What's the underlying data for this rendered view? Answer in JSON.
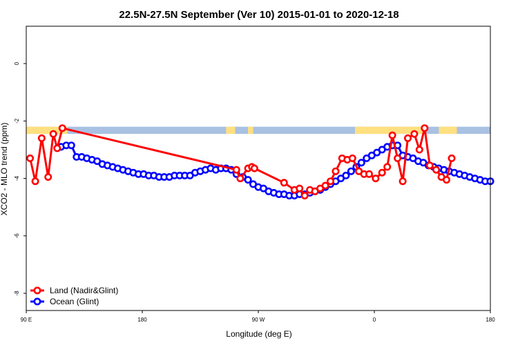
{
  "chart_data": {
    "type": "line",
    "title": "22.5N-27.5N September (Ver 10)   2015-01-01 to 2020-12-18",
    "xlabel": "Longitude (deg E)",
    "ylabel": "XCO2 - MLO trend (ppm)",
    "xlim": [
      90,
      450
    ],
    "ylim": [
      -8.6,
      1.3
    ],
    "x_ticks": [
      {
        "value": 90,
        "label": "90 E"
      },
      {
        "value": 180,
        "label": "180"
      },
      {
        "value": 270,
        "label": "90 W"
      },
      {
        "value": 360,
        "label": "0"
      },
      {
        "value": 450,
        "label": "180"
      }
    ],
    "y_ticks": [
      {
        "value": 0,
        "label": "0"
      },
      {
        "value": -2,
        "label": "-2"
      },
      {
        "value": -4,
        "label": "-4"
      },
      {
        "value": -6,
        "label": "-6"
      },
      {
        "value": -8,
        "label": "-8"
      }
    ],
    "legend_position": "bottom-left",
    "map_strip": {
      "y_range": [
        -2.45,
        -2.2
      ],
      "ocean_color": "#a9c1e2",
      "land_color": "#ffe080",
      "land_x_ranges": [
        [
          90,
          122
        ],
        [
          245,
          252
        ],
        [
          262,
          266
        ],
        [
          345,
          400
        ],
        [
          410,
          424
        ]
      ]
    },
    "series": [
      {
        "name": "Land (Nadir&Glint)",
        "color": "#ff0000",
        "x": [
          93,
          97,
          102,
          107,
          111,
          114,
          118,
          253,
          256,
          262,
          265,
          267,
          290,
          298,
          302,
          306,
          310,
          314,
          318,
          322,
          326,
          330,
          335,
          339,
          343,
          348,
          352,
          356,
          361,
          366,
          370,
          374,
          378,
          382,
          386,
          391,
          395,
          399,
          403,
          408,
          412,
          416,
          420
        ],
        "y": [
          -3.3,
          -4.1,
          -2.6,
          -3.95,
          -2.45,
          -2.95,
          -2.25,
          -3.7,
          -4.0,
          -3.65,
          -3.6,
          -3.65,
          -4.15,
          -4.4,
          -4.35,
          -4.6,
          -4.4,
          -4.45,
          -4.35,
          -4.25,
          -4.1,
          -3.75,
          -3.3,
          -3.35,
          -3.3,
          -3.75,
          -3.85,
          -3.85,
          -4.0,
          -3.8,
          -3.6,
          -2.5,
          -3.3,
          -4.1,
          -2.6,
          -2.45,
          -3.0,
          -2.25,
          -3.55,
          -3.7,
          -3.95,
          -4.05,
          -3.3
        ]
      },
      {
        "name": "Ocean (Glint)",
        "color": "#0000ff",
        "x": [
          117,
          121,
          125,
          129,
          133,
          137,
          141,
          145,
          149,
          153,
          157,
          161,
          165,
          169,
          173,
          177,
          181,
          185,
          189,
          193,
          197,
          201,
          205,
          209,
          213,
          217,
          221,
          225,
          229,
          233,
          237,
          241,
          245,
          249,
          253,
          258,
          262,
          266,
          270,
          274,
          278,
          282,
          286,
          290,
          294,
          298,
          302,
          306,
          310,
          314,
          318,
          322,
          326,
          330,
          334,
          338,
          342,
          346,
          350,
          354,
          358,
          362,
          366,
          370,
          374,
          378,
          382,
          386,
          390,
          394,
          398,
          402,
          406,
          410,
          414,
          418,
          422,
          426,
          430,
          434,
          438,
          442,
          446,
          450
        ],
        "y": [
          -2.9,
          -2.85,
          -2.85,
          -3.25,
          -3.25,
          -3.3,
          -3.35,
          -3.4,
          -3.5,
          -3.55,
          -3.6,
          -3.65,
          -3.7,
          -3.75,
          -3.8,
          -3.85,
          -3.85,
          -3.9,
          -3.9,
          -3.95,
          -3.95,
          -3.95,
          -3.9,
          -3.9,
          -3.9,
          -3.9,
          -3.8,
          -3.75,
          -3.7,
          -3.65,
          -3.7,
          -3.65,
          -3.65,
          -3.7,
          -3.85,
          -3.95,
          -4.05,
          -4.2,
          -4.3,
          -4.35,
          -4.45,
          -4.5,
          -4.55,
          -4.55,
          -4.6,
          -4.6,
          -4.55,
          -4.55,
          -4.5,
          -4.45,
          -4.4,
          -4.3,
          -4.2,
          -4.1,
          -4.0,
          -3.9,
          -3.75,
          -3.6,
          -3.45,
          -3.3,
          -3.2,
          -3.1,
          -3.0,
          -2.9,
          -2.85,
          -2.85,
          -3.2,
          -3.25,
          -3.3,
          -3.4,
          -3.45,
          -3.55,
          -3.6,
          -3.65,
          -3.7,
          -3.75,
          -3.8,
          -3.85,
          -3.9,
          -3.95,
          -4.0,
          -4.05,
          -4.1,
          -4.1
        ]
      }
    ]
  }
}
